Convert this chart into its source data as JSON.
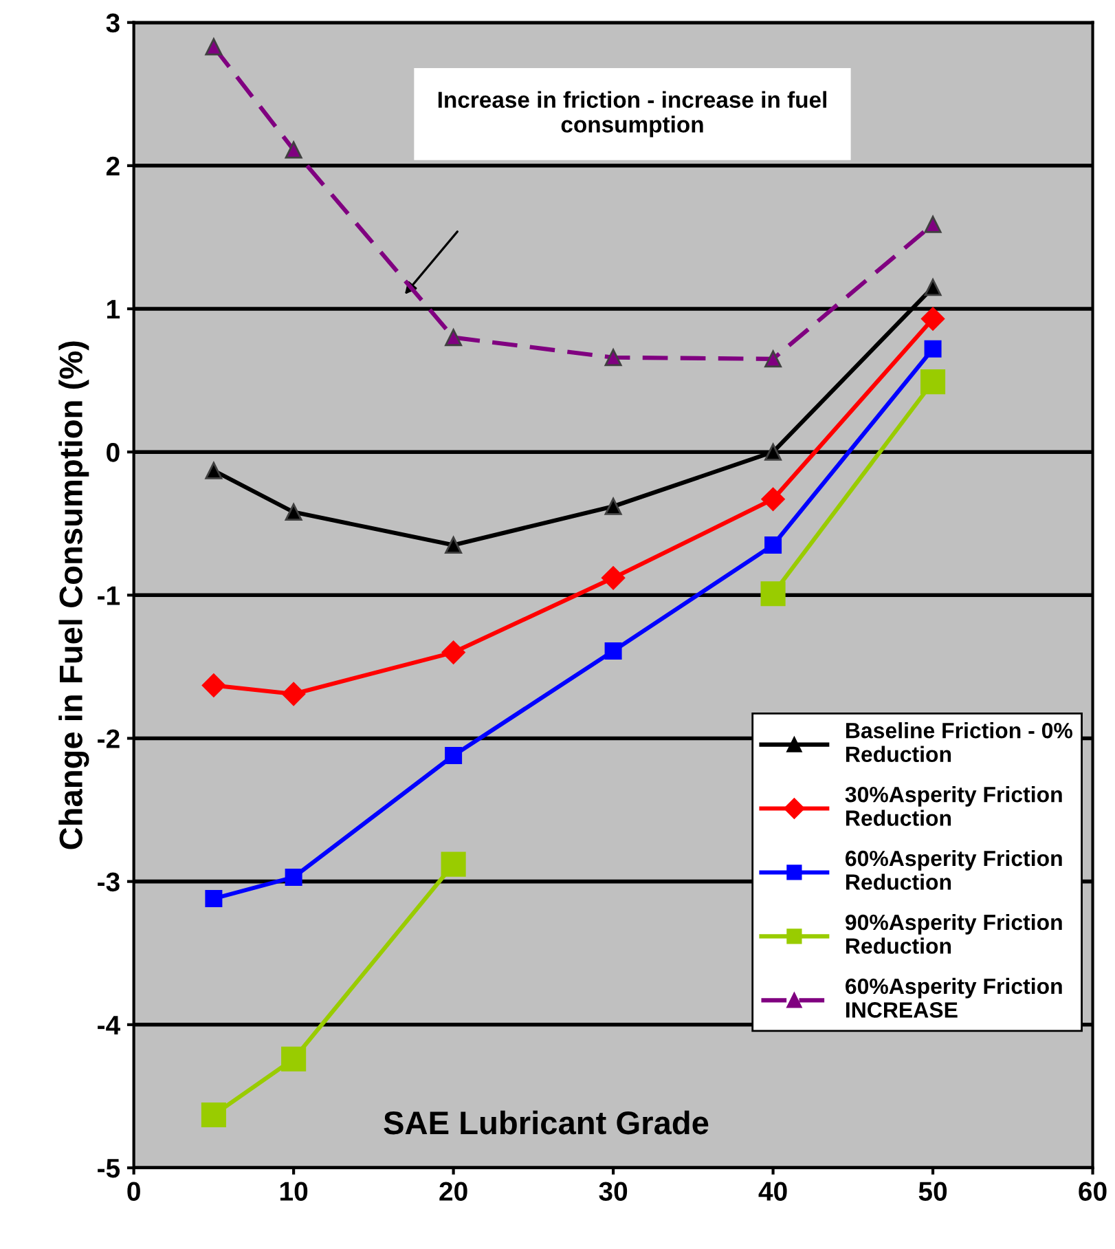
{
  "chart_data": {
    "type": "line",
    "ylabel": "Change in Fuel Consumption (%)",
    "xlabel": "SAE Lubricant Grade",
    "x": [
      5,
      10,
      20,
      30,
      40,
      50
    ],
    "series": [
      {
        "name": "Baseline Friction - 0%\nReduction",
        "color": "#000000",
        "marker": "triangle",
        "line_style": "solid",
        "values": [
          -0.13,
          -0.42,
          -0.65,
          -0.38,
          0.0,
          1.15
        ]
      },
      {
        "name": "30%Asperity Friction\nReduction",
        "color": "#ff0000",
        "marker": "diamond",
        "line_style": "solid",
        "values": [
          -1.63,
          -1.69,
          -1.4,
          -0.88,
          -0.33,
          0.93
        ]
      },
      {
        "name": "60%Asperity Friction\nReduction",
        "color": "#0000ff",
        "marker": "square",
        "line_style": "solid",
        "values": [
          -3.12,
          -2.97,
          -2.12,
          -1.39,
          -0.65,
          0.72
        ]
      },
      {
        "name": "90%Asperity Friction\nReduction",
        "color": "#99cc00",
        "marker": "square",
        "line_style": "solid",
        "values": [
          -4.63,
          -4.24,
          -2.88,
          null,
          -0.99,
          0.49
        ]
      },
      {
        "name": "60%Asperity Friction\nINCREASE",
        "color": "#800080",
        "marker": "triangle",
        "line_style": "dashed",
        "values": [
          2.83,
          2.11,
          0.8,
          0.66,
          0.65,
          1.59
        ]
      }
    ],
    "xlim": [
      0,
      60
    ],
    "xticks": [
      0,
      10,
      20,
      30,
      40,
      50,
      60
    ],
    "ylim": [
      -5,
      3
    ],
    "yticks": [
      -5,
      -4,
      -3,
      -2,
      -1,
      0,
      1,
      2,
      3
    ],
    "grid": "y",
    "legend": "bottom right",
    "annotations": [
      "Increase in friction - increase in fuel\nconsumption"
    ]
  }
}
